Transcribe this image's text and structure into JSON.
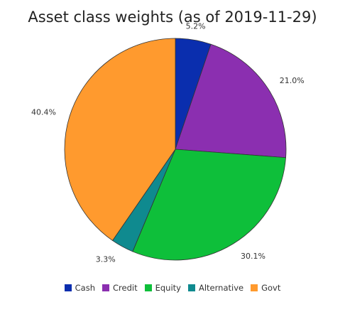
{
  "chart_data": {
    "type": "pie",
    "title": "Asset class weights (as of 2019-11-29)",
    "labels": [
      "Cash",
      "Credit",
      "Equity",
      "Alternative",
      "Govt"
    ],
    "values": [
      5.2,
      21.0,
      30.1,
      3.3,
      40.4
    ],
    "value_labels": [
      "5.2%",
      "21.0%",
      "30.1%",
      "3.3%",
      "40.4%"
    ],
    "colors": [
      "#0a2eae",
      "#8b2fb0",
      "#0ebf3a",
      "#0f8a8f",
      "#ff9a2e"
    ],
    "legend_position": "bottom",
    "start": "top",
    "direction": "clockwise"
  }
}
